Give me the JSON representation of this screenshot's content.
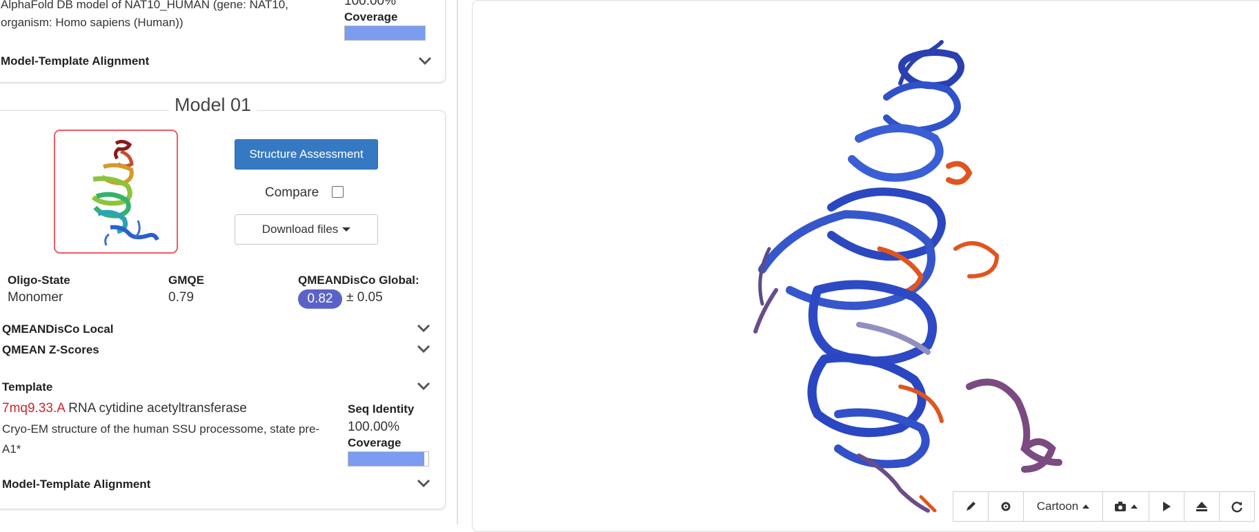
{
  "prev_panel": {
    "description_line1": "AlphaFold DB model of NAT10_HUMAN (gene: NAT10,",
    "description_line2": "organism: Homo sapiens (Human))",
    "seq_identity_value": "100.00%",
    "coverage_label": "Coverage",
    "coverage_fraction": 1.0,
    "alignment_label": "Model-Template Alignment"
  },
  "model": {
    "title": "Model 01",
    "structure_assessment_label": "Structure Assessment",
    "compare_label": "Compare",
    "download_label": "Download files",
    "oligo_state_label": "Oligo-State",
    "oligo_state_value": "Monomer",
    "gmqe_label": "GMQE",
    "gmqe_value": "0.79",
    "qmeandisco_global_label": "QMEANDisCo Global:",
    "qmeandisco_global_value": "0.82",
    "qmeandisco_global_error": "± 0.05",
    "qmeandisco_local_label": "QMEANDisCo Local",
    "qmean_zscores_label": "QMEAN Z-Scores",
    "template_label": "Template",
    "template_id": "7mq9.33.A",
    "template_name": "RNA cytidine acetyltransferase",
    "template_desc_line1": "Cryo-EM structure of the human SSU processome, state pre-",
    "template_desc_line2": "A1*",
    "seq_identity_label": "Seq Identity",
    "seq_identity_value": "100.00%",
    "coverage_label": "Coverage",
    "coverage_fraction": 0.95,
    "alignment_label": "Model-Template Alignment"
  },
  "viewer": {
    "toolbar": {
      "representation_label": "Cartoon"
    }
  },
  "icons": [
    "chevron-down-icon",
    "pencil-icon",
    "gear-icon",
    "camera-icon",
    "play-icon",
    "eject-icon",
    "refresh-icon"
  ],
  "colors": {
    "primary_button": "#3579c2",
    "template_link": "#d0232b",
    "score_badge": "#5b62c7",
    "coverage_fill": "#7b9cf0",
    "thumbnail_border": "#ef5a61"
  }
}
